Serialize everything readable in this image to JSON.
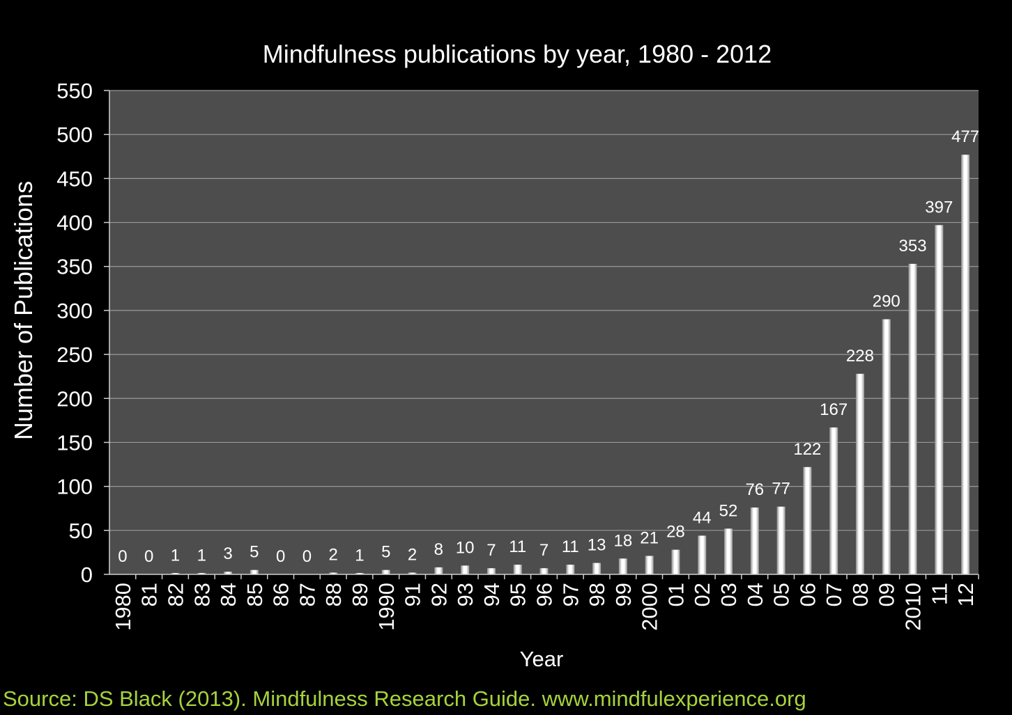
{
  "chart_data": {
    "type": "bar",
    "title": "Mindfulness publications by year, 1980 - 2012",
    "xlabel": "Year",
    "ylabel": "Number of Publications",
    "ylim": [
      0,
      550
    ],
    "yticks": [
      0,
      50,
      100,
      150,
      200,
      250,
      300,
      350,
      400,
      450,
      500,
      550
    ],
    "grid": true,
    "legend": "none",
    "categories": [
      "1980",
      "81",
      "82",
      "83",
      "84",
      "85",
      "86",
      "87",
      "88",
      "89",
      "1990",
      "91",
      "92",
      "93",
      "94",
      "95",
      "96",
      "97",
      "98",
      "99",
      "2000",
      "01",
      "02",
      "03",
      "04",
      "05",
      "06",
      "07",
      "08",
      "09",
      "2010",
      "11",
      "12"
    ],
    "values": [
      0,
      0,
      1,
      1,
      3,
      5,
      0,
      0,
      2,
      1,
      5,
      2,
      8,
      10,
      7,
      11,
      7,
      11,
      13,
      18,
      21,
      28,
      44,
      52,
      76,
      77,
      122,
      167,
      228,
      290,
      353,
      397,
      477
    ],
    "colors": {
      "page_background": "#000000",
      "plot_background": "#4d4d4d",
      "gridline": "#9a9a9a",
      "bar": "#ffffff",
      "text": "#ffffff",
      "source": "#a6d33c"
    }
  },
  "source": "Source: DS Black (2013). Mindfulness Research Guide. www.mindfulexperience.org"
}
